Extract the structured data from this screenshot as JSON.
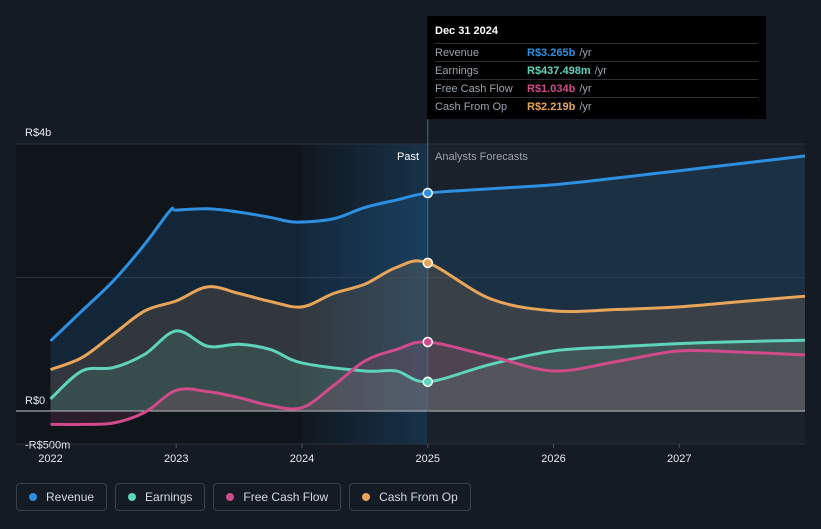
{
  "chart_data": {
    "type": "area",
    "title": "",
    "xlabel": "",
    "ylabel": "",
    "x_ticks": [
      "2022",
      "2023",
      "2024",
      "2025",
      "2026",
      "2027"
    ],
    "y_tick_labels": [
      {
        "value": 4000,
        "label": "R$4b"
      },
      {
        "value": 0,
        "label": "R$0"
      },
      {
        "value": -500,
        "label": "-R$500m"
      }
    ],
    "ylim": [
      -500,
      4000
    ],
    "xlim": [
      2021.98,
      2028.0
    ],
    "units": "R$ millions",
    "past_label": "Past",
    "forecast_label": "Analysts Forecasts",
    "forecast_start": 2025.0,
    "highlight_range": [
      2024.0,
      2025.0
    ],
    "series": [
      {
        "name": "Revenue",
        "color": "#2d8fe0",
        "x": [
          2022.0,
          2022.25,
          2022.5,
          2022.75,
          2022.95,
          2023.0,
          2023.25,
          2023.5,
          2023.75,
          2023.95,
          2024.25,
          2024.5,
          2024.75,
          2025.0,
          2025.5,
          2026.0,
          2026.5,
          2027.0,
          2027.5,
          2028.0
        ],
        "values": [
          1050,
          1500,
          1950,
          2500,
          3000,
          3010,
          3030,
          2980,
          2900,
          2830,
          2880,
          3050,
          3160,
          3265,
          3330,
          3390,
          3490,
          3600,
          3710,
          3820
        ]
      },
      {
        "name": "Earnings",
        "color": "#5fd3bc",
        "x": [
          2022.0,
          2022.25,
          2022.5,
          2022.75,
          2023.0,
          2023.25,
          2023.5,
          2023.75,
          2024.0,
          2024.5,
          2024.75,
          2025.0,
          2025.5,
          2026.0,
          2026.5,
          2027.0,
          2027.5,
          2028.0
        ],
        "values": [
          180,
          600,
          650,
          850,
          1200,
          970,
          1000,
          920,
          720,
          600,
          600,
          437.498,
          700,
          900,
          960,
          1010,
          1040,
          1060
        ]
      },
      {
        "name": "Free Cash Flow",
        "color": "#cf4b8b",
        "x": [
          2022.0,
          2022.25,
          2022.5,
          2022.75,
          2023.0,
          2023.25,
          2023.5,
          2023.75,
          2024.0,
          2024.25,
          2024.5,
          2024.75,
          2025.0,
          2025.5,
          2026.0,
          2026.5,
          2027.0,
          2027.5,
          2028.0
        ],
        "values": [
          -200,
          -200,
          -180,
          -20,
          310,
          290,
          200,
          80,
          50,
          380,
          750,
          920,
          1034,
          820,
          600,
          740,
          900,
          880,
          840
        ]
      },
      {
        "name": "Cash From Op",
        "color": "#e7a55a",
        "x": [
          2022.0,
          2022.25,
          2022.5,
          2022.75,
          2023.0,
          2023.25,
          2023.5,
          2023.75,
          2024.0,
          2024.25,
          2024.5,
          2024.75,
          2025.0,
          2025.5,
          2026.0,
          2026.5,
          2027.0,
          2027.5,
          2028.0
        ],
        "values": [
          620,
          800,
          1150,
          1500,
          1650,
          1860,
          1760,
          1640,
          1560,
          1760,
          1900,
          2150,
          2219,
          1680,
          1500,
          1520,
          1560,
          1640,
          1720
        ]
      }
    ],
    "tooltip": {
      "date": "Dec 31 2024",
      "rows": [
        {
          "label": "Revenue",
          "value": "R$3.265b",
          "unit": "/yr",
          "color": "#2d8fe0"
        },
        {
          "label": "Earnings",
          "value": "R$437.498m",
          "unit": "/yr",
          "color": "#5fd3bc"
        },
        {
          "label": "Free Cash Flow",
          "value": "R$1.034b",
          "unit": "/yr",
          "color": "#cf4b8b"
        },
        {
          "label": "Cash From Op",
          "value": "R$2.219b",
          "unit": "/yr",
          "color": "#e7a55a"
        }
      ]
    },
    "legend": [
      {
        "label": "Revenue",
        "color": "#2d8fe0"
      },
      {
        "label": "Earnings",
        "color": "#5fd3bc"
      },
      {
        "label": "Free Cash Flow",
        "color": "#cf4b8b"
      },
      {
        "label": "Cash From Op",
        "color": "#e7a55a"
      }
    ]
  }
}
